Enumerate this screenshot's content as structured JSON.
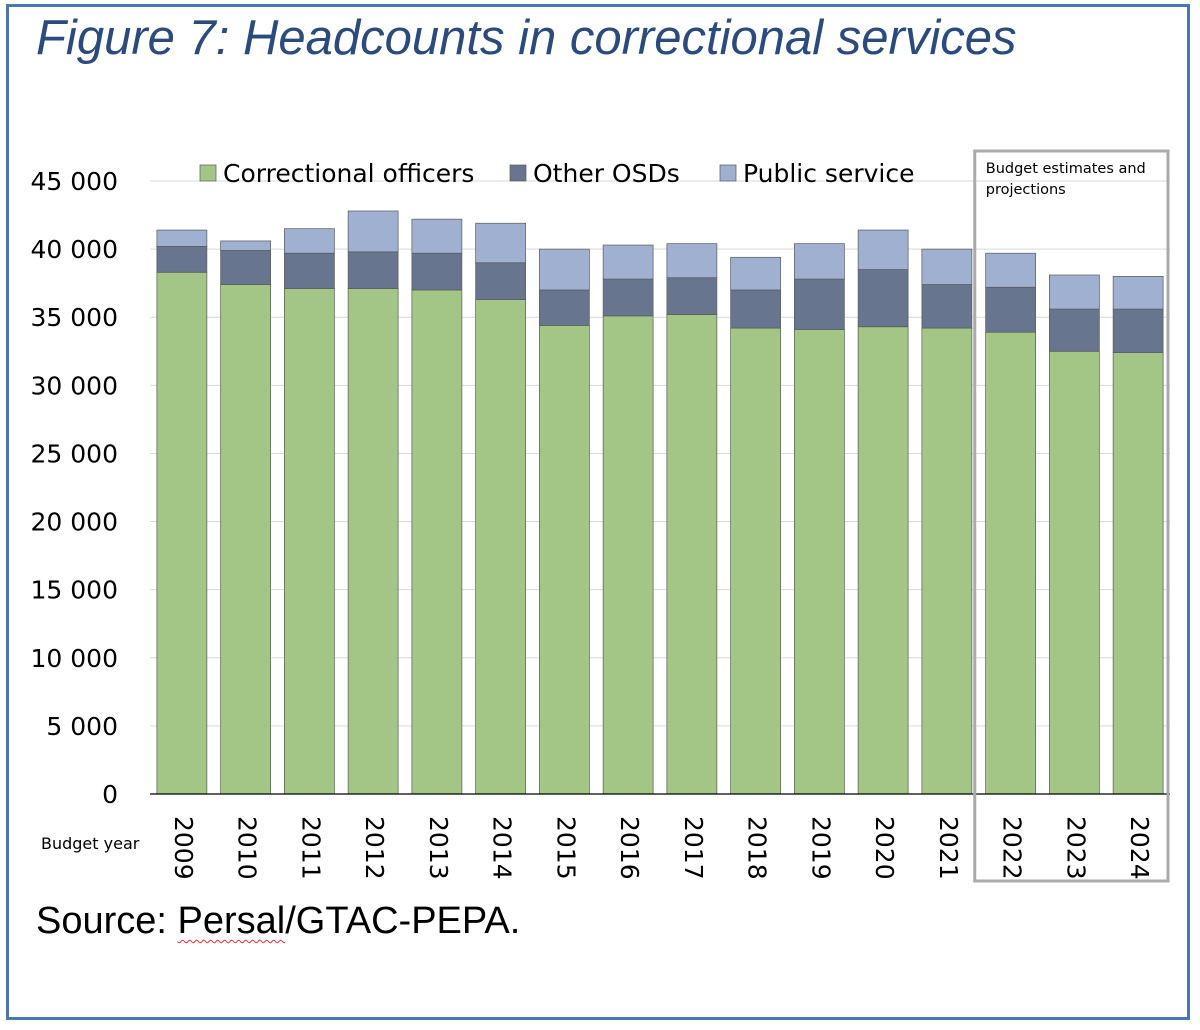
{
  "title": "Figure 7: Headcounts in correctional services",
  "source": {
    "prefix": "Source: ",
    "spelled": "Persal",
    "suffix": "/GTAC-PEPA."
  },
  "colors": {
    "frame": "#4a76b4",
    "title": "#2c4a7c",
    "correctional": "#a3c585",
    "other": "#67758f",
    "public": "#9fb0d0",
    "box": "#aaaaaa"
  },
  "chart_data": {
    "type": "bar",
    "stacked": true,
    "xlabel": "Budget year",
    "ylim": [
      0,
      45000
    ],
    "yticks": [
      0,
      5000,
      10000,
      15000,
      20000,
      25000,
      30000,
      35000,
      40000,
      45000
    ],
    "ytick_labels": [
      "0",
      "5 000",
      "10 000",
      "15 000",
      "20 000",
      "25 000",
      "30 000",
      "35 000",
      "40 000",
      "45 000"
    ],
    "grid": true,
    "legend_position": "top",
    "categories": [
      "2009",
      "2010",
      "2011",
      "2012",
      "2013",
      "2014",
      "2015",
      "2016",
      "2017",
      "2018",
      "2019",
      "2020",
      "2021",
      "2022",
      "2023",
      "2024"
    ],
    "series": [
      {
        "name": "Correctional officers",
        "color": "#a3c585",
        "values": [
          38300,
          37400,
          37100,
          37100,
          37000,
          36300,
          34400,
          35100,
          35200,
          34200,
          34100,
          34300,
          34200,
          33900,
          32500,
          32400
        ]
      },
      {
        "name": "Other OSDs",
        "color": "#67758f",
        "values": [
          1900,
          2500,
          2600,
          2700,
          2700,
          2700,
          2600,
          2700,
          2700,
          2800,
          3700,
          4200,
          3200,
          3300,
          3100,
          3200
        ]
      },
      {
        "name": "Public service",
        "color": "#9fb0d0",
        "values": [
          1200,
          700,
          1800,
          3000,
          2500,
          2900,
          3000,
          2500,
          2500,
          2400,
          2600,
          2900,
          2600,
          2500,
          2500,
          2400
        ]
      }
    ],
    "annotation": {
      "lines": [
        "Budget estimates and",
        "projections"
      ],
      "from_category": "2022",
      "to_category": "2024"
    }
  }
}
